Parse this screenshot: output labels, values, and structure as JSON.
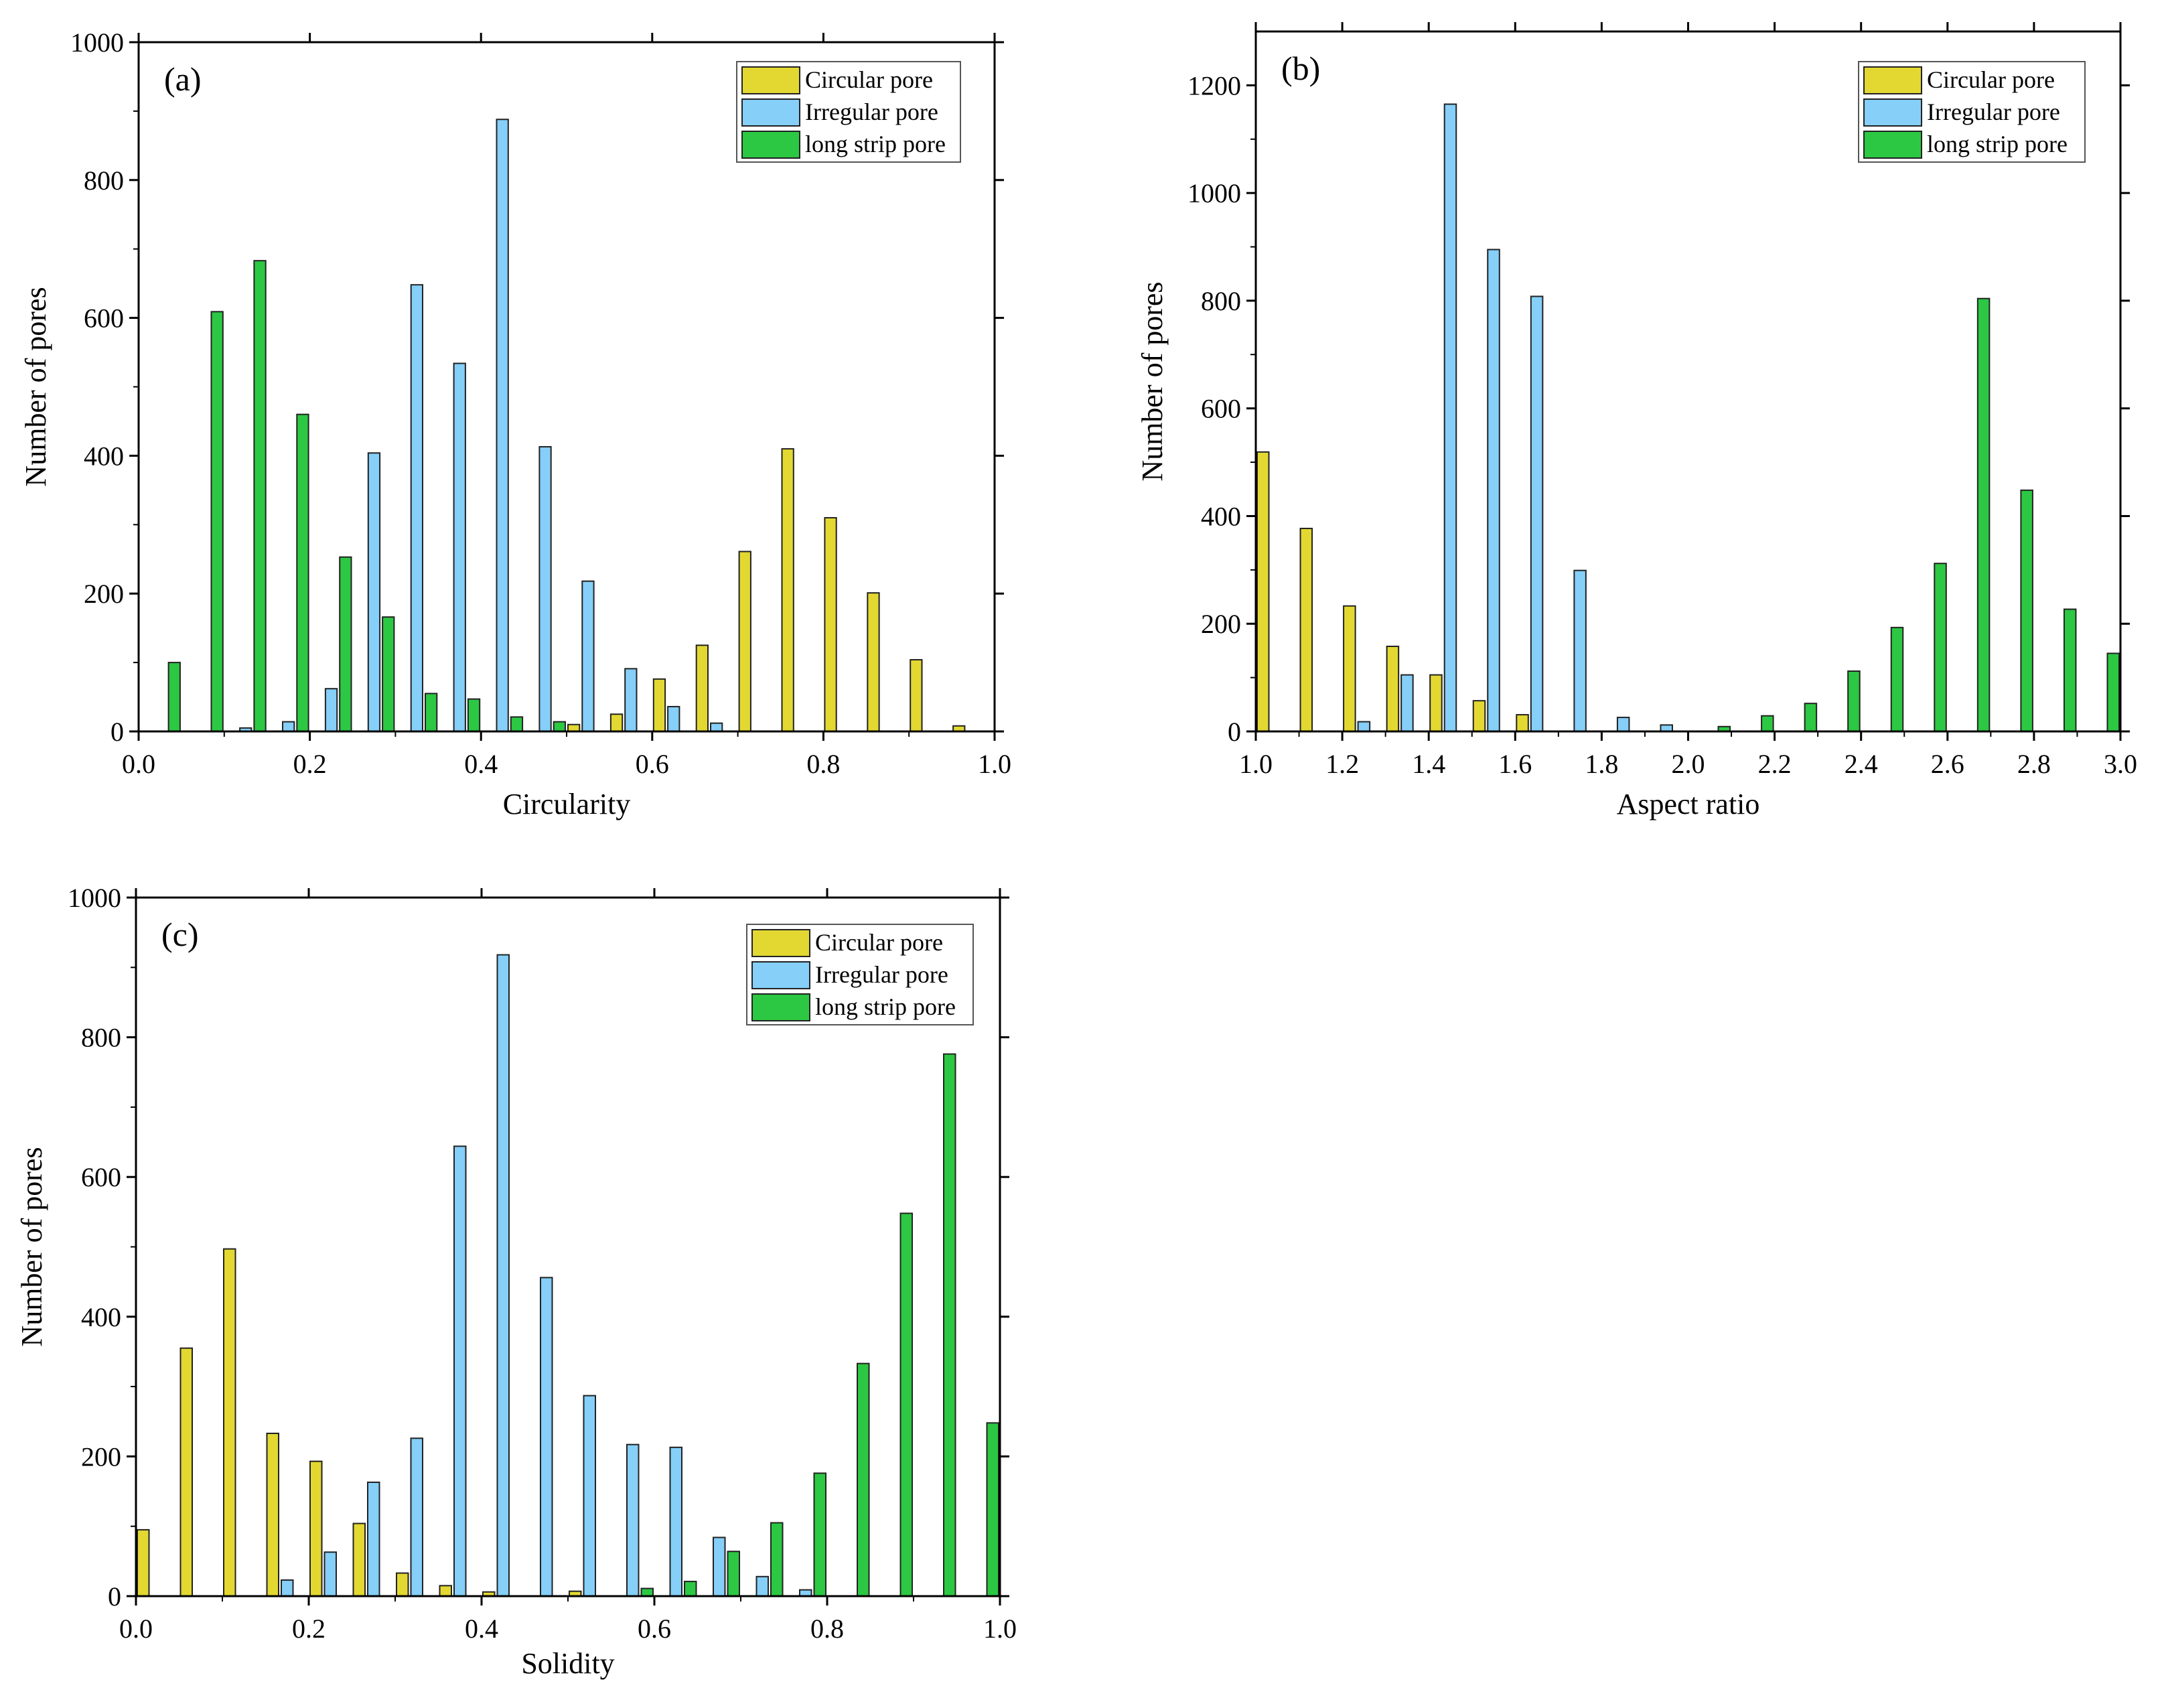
{
  "figure": {
    "colors": {
      "circular": "#e3d832",
      "irregular": "#85cff8",
      "strip": "#2cc843",
      "edge": "#222222"
    }
  },
  "chart_data": [
    {
      "panel": "(a)",
      "type": "bar",
      "xlabel": "Circularity",
      "ylabel": "Number of pores",
      "xlim": [
        0,
        1.0
      ],
      "ylim": [
        0,
        1000
      ],
      "xticks": [
        0.0,
        0.2,
        0.4,
        0.6,
        0.8,
        1.0
      ],
      "xtick_labels": [
        "0.0",
        "0.2",
        "0.4",
        "0.6",
        "0.8",
        "1.0"
      ],
      "yticks": [
        0,
        200,
        400,
        600,
        800,
        1000
      ],
      "ytick_labels": [
        "0",
        "200",
        "400",
        "600",
        "800",
        "1000"
      ],
      "bin_width": 0.05,
      "bin_starts": [
        0.0,
        0.05,
        0.1,
        0.15,
        0.2,
        0.25,
        0.3,
        0.35,
        0.4,
        0.45,
        0.5,
        0.55,
        0.6,
        0.65,
        0.7,
        0.75,
        0.8,
        0.85,
        0.9,
        0.95
      ],
      "legend_position": "top-right",
      "series": [
        {
          "name": "Circular pore",
          "key": "circular",
          "values": [
            0,
            0,
            0,
            0,
            0,
            0,
            0,
            0,
            0,
            0,
            10,
            25,
            76,
            125,
            261,
            410,
            310,
            201,
            104,
            8
          ]
        },
        {
          "name": "Irregular pore",
          "key": "irregular",
          "values": [
            0,
            0,
            5,
            14,
            62,
            404,
            648,
            534,
            888,
            413,
            218,
            91,
            36,
            12,
            0,
            0,
            0,
            0,
            0,
            0
          ]
        },
        {
          "name": "long strip pore",
          "key": "strip",
          "values": [
            100,
            609,
            683,
            460,
            253,
            166,
            55,
            47,
            21,
            14,
            0,
            0,
            0,
            0,
            0,
            0,
            0,
            0,
            0,
            0
          ]
        }
      ]
    },
    {
      "panel": "(b)",
      "type": "bar",
      "xlabel": "Aspect ratio",
      "ylabel": "Number of pores",
      "xlim": [
        1.0,
        3.0
      ],
      "ylim": [
        0,
        1300
      ],
      "xticks": [
        1.0,
        1.2,
        1.4,
        1.6,
        1.8,
        2.0,
        2.2,
        2.4,
        2.6,
        2.8,
        3.0
      ],
      "xtick_labels": [
        "1.0",
        "1.2",
        "1.4",
        "1.6",
        "1.8",
        "2.0",
        "2.2",
        "2.4",
        "2.6",
        "2.8",
        "3.0"
      ],
      "yticks": [
        0,
        200,
        400,
        600,
        800,
        1000,
        1200
      ],
      "ytick_labels": [
        "0",
        "200",
        "400",
        "600",
        "800",
        "1000",
        "1200"
      ],
      "bin_width": 0.1,
      "bin_starts": [
        1.0,
        1.1,
        1.2,
        1.3,
        1.4,
        1.5,
        1.6,
        1.7,
        1.8,
        1.9,
        2.0,
        2.1,
        2.2,
        2.3,
        2.4,
        2.5,
        2.6,
        2.7,
        2.8,
        2.9
      ],
      "legend_position": "top-right",
      "series": [
        {
          "name": "Circular pore",
          "key": "circular",
          "values": [
            519,
            377,
            233,
            158,
            105,
            57,
            31,
            0,
            0,
            0,
            0,
            0,
            0,
            0,
            0,
            0,
            0,
            0,
            0,
            0
          ]
        },
        {
          "name": "Irregular pore",
          "key": "irregular",
          "values": [
            0,
            0,
            18,
            105,
            1165,
            895,
            808,
            299,
            26,
            12,
            0,
            0,
            0,
            0,
            0,
            0,
            0,
            0,
            0,
            0
          ]
        },
        {
          "name": "long strip pore",
          "key": "strip",
          "values": [
            0,
            0,
            0,
            0,
            0,
            0,
            0,
            0,
            0,
            0,
            9,
            29,
            52,
            112,
            193,
            312,
            804,
            448,
            227,
            145
          ]
        }
      ]
    },
    {
      "panel": "(c)",
      "type": "bar",
      "xlabel": "Solidity",
      "ylabel": "Number of pores",
      "xlim": [
        0,
        1.0
      ],
      "ylim": [
        0,
        1000
      ],
      "xticks": [
        0.0,
        0.2,
        0.4,
        0.6,
        0.8,
        1.0
      ],
      "xtick_labels": [
        "0.0",
        "0.2",
        "0.4",
        "0.6",
        "0.8",
        "1.0"
      ],
      "yticks": [
        0,
        200,
        400,
        600,
        800,
        1000
      ],
      "ytick_labels": [
        "0",
        "200",
        "400",
        "600",
        "800",
        "1000"
      ],
      "bin_width": 0.05,
      "bin_starts": [
        0.0,
        0.05,
        0.1,
        0.15,
        0.2,
        0.25,
        0.3,
        0.35,
        0.4,
        0.45,
        0.5,
        0.55,
        0.6,
        0.65,
        0.7,
        0.75,
        0.8,
        0.85,
        0.9,
        0.95
      ],
      "legend_position": "top-right",
      "series": [
        {
          "name": "Circular pore",
          "key": "circular",
          "values": [
            95,
            355,
            497,
            233,
            193,
            104,
            33,
            15,
            6,
            0,
            7,
            0,
            0,
            0,
            0,
            0,
            0,
            0,
            0,
            0
          ]
        },
        {
          "name": "Irregular pore",
          "key": "irregular",
          "values": [
            0,
            0,
            0,
            23,
            63,
            163,
            226,
            644,
            918,
            456,
            287,
            217,
            213,
            84,
            28,
            9,
            0,
            0,
            0,
            0
          ]
        },
        {
          "name": "long strip pore",
          "key": "strip",
          "values": [
            0,
            0,
            0,
            0,
            0,
            0,
            0,
            0,
            0,
            0,
            0,
            11,
            21,
            64,
            105,
            176,
            333,
            548,
            776,
            248
          ]
        }
      ]
    }
  ]
}
